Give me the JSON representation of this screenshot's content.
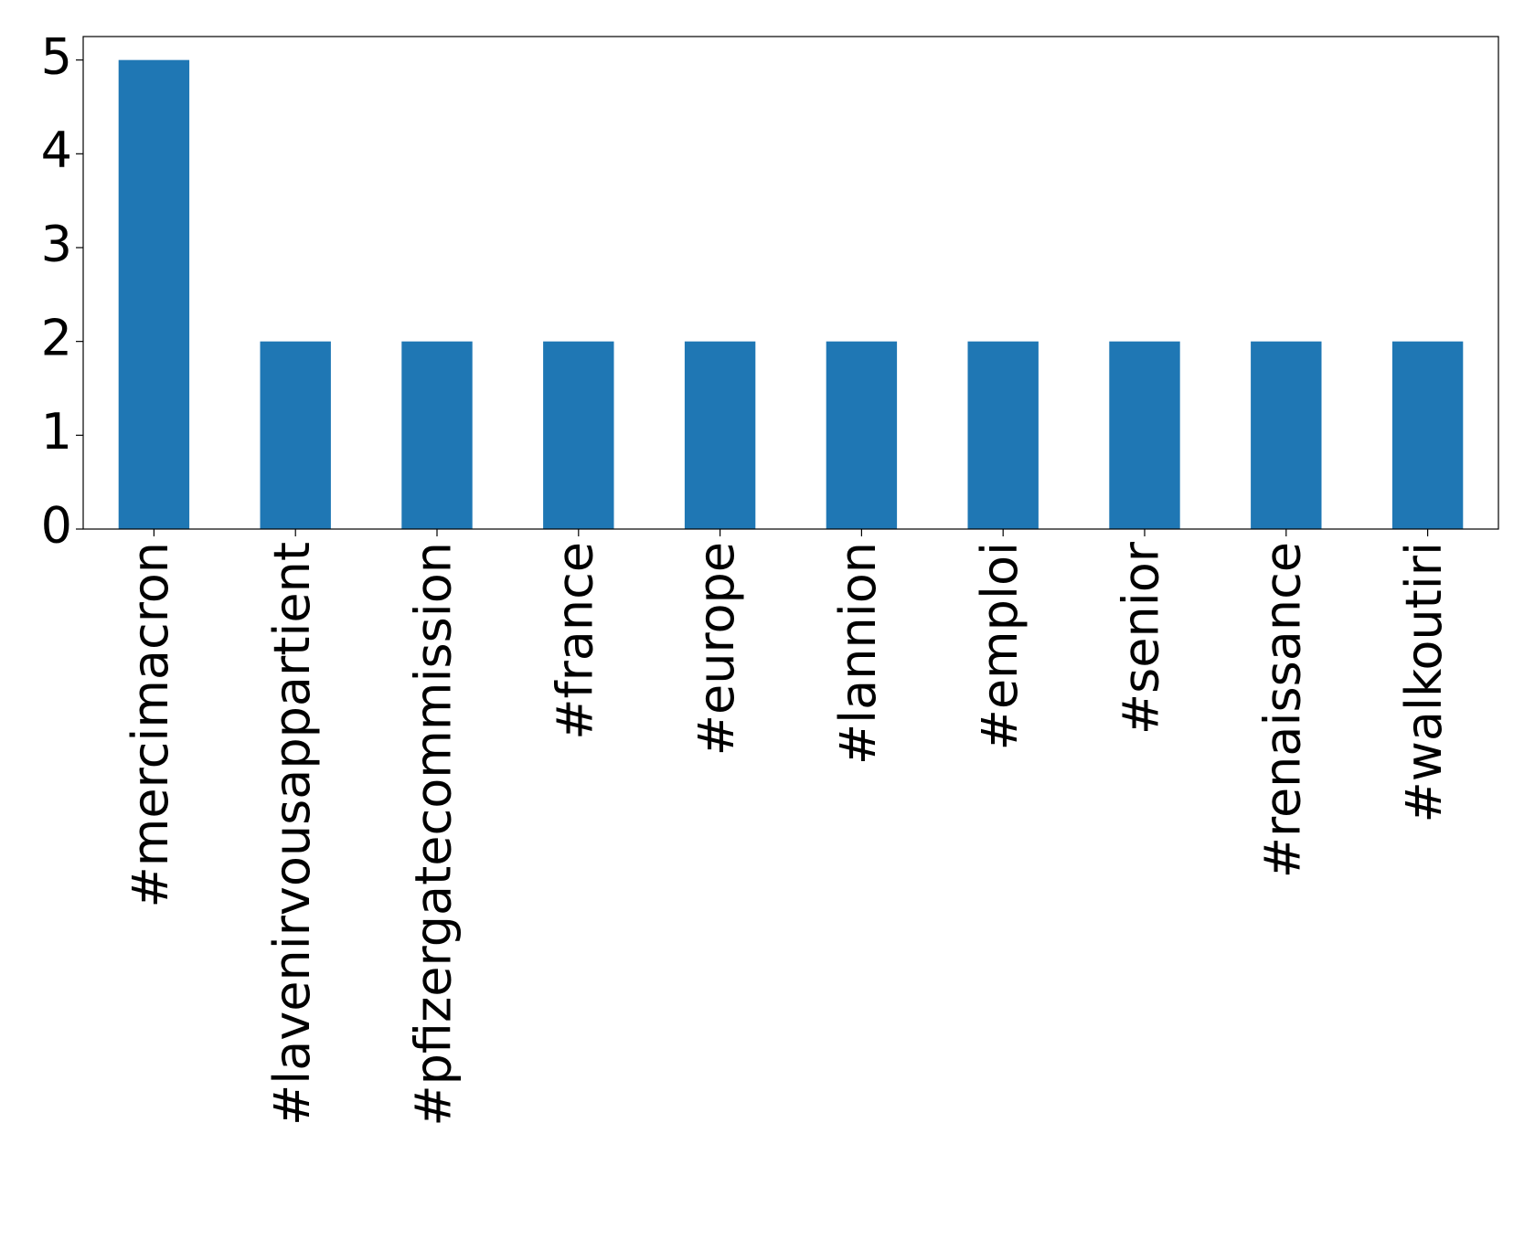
{
  "chart_data": {
    "type": "bar",
    "categories": [
      "#mercimacron",
      "#lavenirvousappartient",
      "#pfizergatecommission",
      "#france",
      "#europe",
      "#lannion",
      "#emploi",
      "#senior",
      "#renaissance",
      "#walkoutiri"
    ],
    "values": [
      5,
      2,
      2,
      2,
      2,
      2,
      2,
      2,
      2,
      2
    ],
    "color": "#1f77b4",
    "ylim": [
      0,
      5.25
    ],
    "yticks": [
      0,
      1,
      2,
      3,
      4,
      5
    ],
    "grid": false
  }
}
